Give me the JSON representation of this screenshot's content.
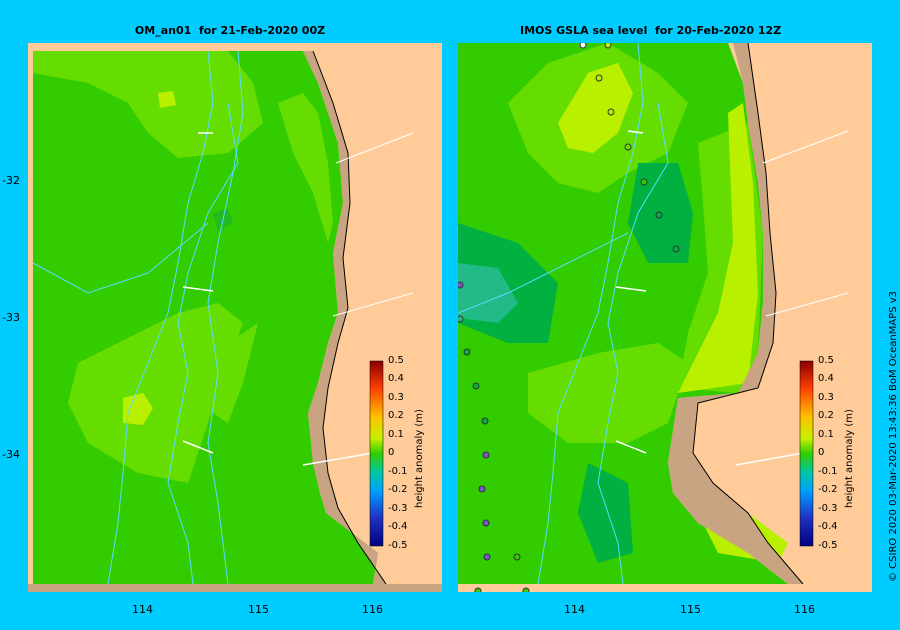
{
  "panels": [
    {
      "title": "OM_an01  for 21-Feb-2020 00Z"
    },
    {
      "title": "IMOS GSLA sea level  for 20-Feb-2020 12Z"
    }
  ],
  "axes": {
    "lat_ticks": [
      "-32",
      "-33",
      "-34"
    ],
    "lon_ticks": [
      "114",
      "115",
      "116"
    ]
  },
  "colorbar": {
    "title": "height anomaly (m)",
    "labels": [
      "0.5",
      "0.4",
      "0.3",
      "0.2",
      "0.1",
      "0",
      "-0.1",
      "-0.2",
      "-0.3",
      "-0.4",
      "-0.5"
    ]
  },
  "credit": "© CSIRO 2020   03-Mar-2020 13:43:36 BoM OceanMAPS v3",
  "colors": {
    "background": "#00ccff",
    "land": "#ffcc99",
    "shelf": "#c8a482",
    "green_mid": "#33cc00",
    "green_light": "#66dd00",
    "yellow_green": "#b8f000",
    "green_dark": "#00b040"
  }
}
